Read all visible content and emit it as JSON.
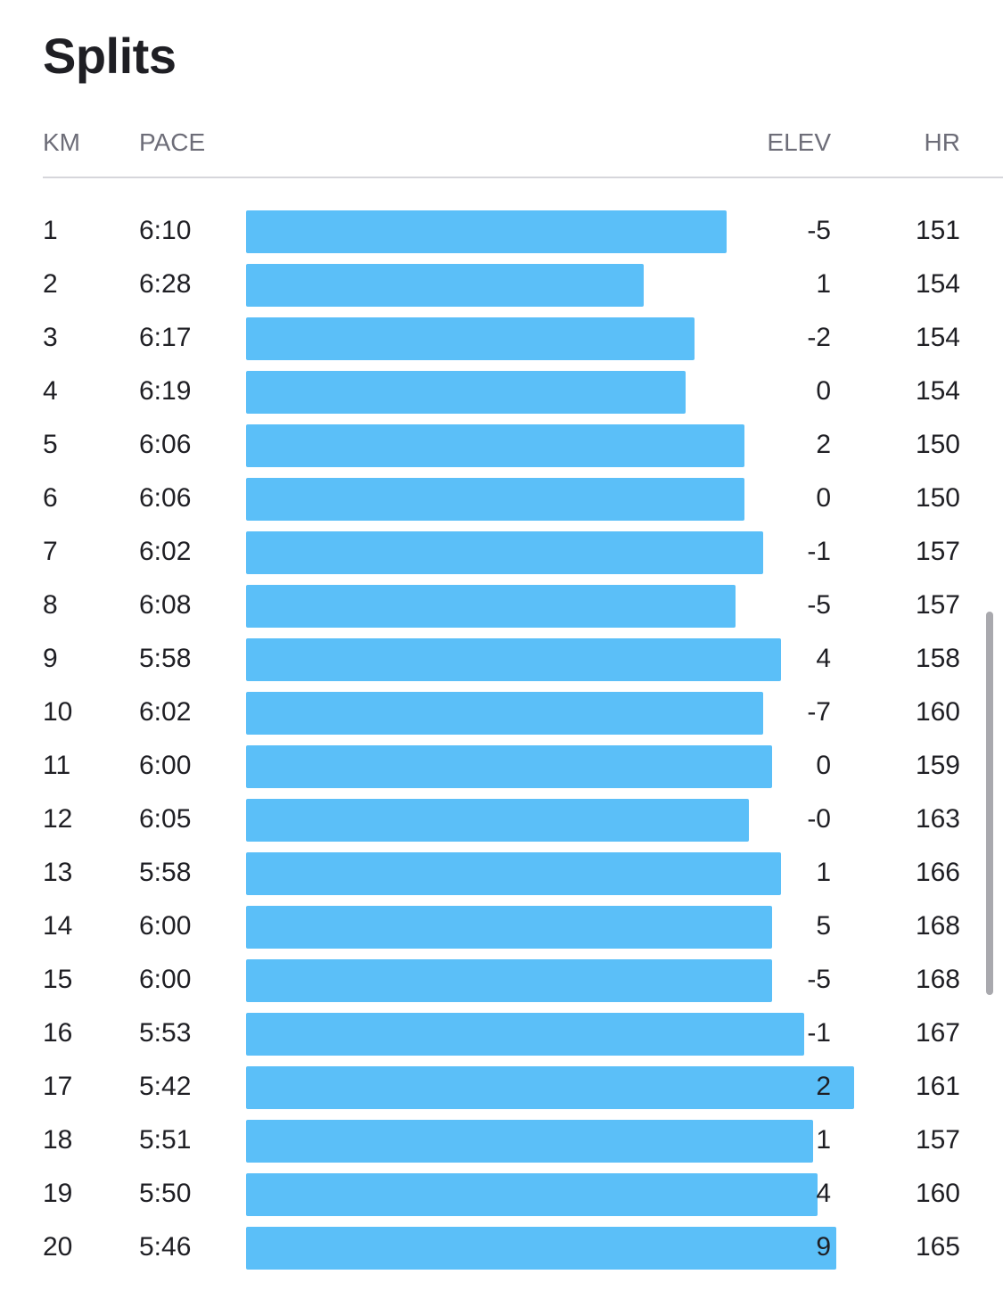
{
  "title": "Splits",
  "columns": {
    "km": "KM",
    "pace": "PACE",
    "elev": "ELEV",
    "hr": "HR"
  },
  "colors": {
    "bar": "#5bbff8",
    "text": "#1f1f24",
    "header_text": "#6d6d78"
  },
  "splits": [
    {
      "km": "1",
      "pace": "6:10",
      "elev": "-5",
      "hr": "151"
    },
    {
      "km": "2",
      "pace": "6:28",
      "elev": "1",
      "hr": "154"
    },
    {
      "km": "3",
      "pace": "6:17",
      "elev": "-2",
      "hr": "154"
    },
    {
      "km": "4",
      "pace": "6:19",
      "elev": "0",
      "hr": "154"
    },
    {
      "km": "5",
      "pace": "6:06",
      "elev": "2",
      "hr": "150"
    },
    {
      "km": "6",
      "pace": "6:06",
      "elev": "0",
      "hr": "150"
    },
    {
      "km": "7",
      "pace": "6:02",
      "elev": "-1",
      "hr": "157"
    },
    {
      "km": "8",
      "pace": "6:08",
      "elev": "-5",
      "hr": "157"
    },
    {
      "km": "9",
      "pace": "5:58",
      "elev": "4",
      "hr": "158"
    },
    {
      "km": "10",
      "pace": "6:02",
      "elev": "-7",
      "hr": "160"
    },
    {
      "km": "11",
      "pace": "6:00",
      "elev": "0",
      "hr": "159"
    },
    {
      "km": "12",
      "pace": "6:05",
      "elev": "-0",
      "hr": "163"
    },
    {
      "km": "13",
      "pace": "5:58",
      "elev": "1",
      "hr": "166"
    },
    {
      "km": "14",
      "pace": "6:00",
      "elev": "5",
      "hr": "168"
    },
    {
      "km": "15",
      "pace": "6:00",
      "elev": "-5",
      "hr": "168"
    },
    {
      "km": "16",
      "pace": "5:53",
      "elev": "-1",
      "hr": "167"
    },
    {
      "km": "17",
      "pace": "5:42",
      "elev": "2",
      "hr": "161"
    },
    {
      "km": "18",
      "pace": "5:51",
      "elev": "1",
      "hr": "157"
    },
    {
      "km": "19",
      "pace": "5:50",
      "elev": "4",
      "hr": "160"
    },
    {
      "km": "20",
      "pace": "5:46",
      "elev": "9",
      "hr": "165"
    }
  ]
}
